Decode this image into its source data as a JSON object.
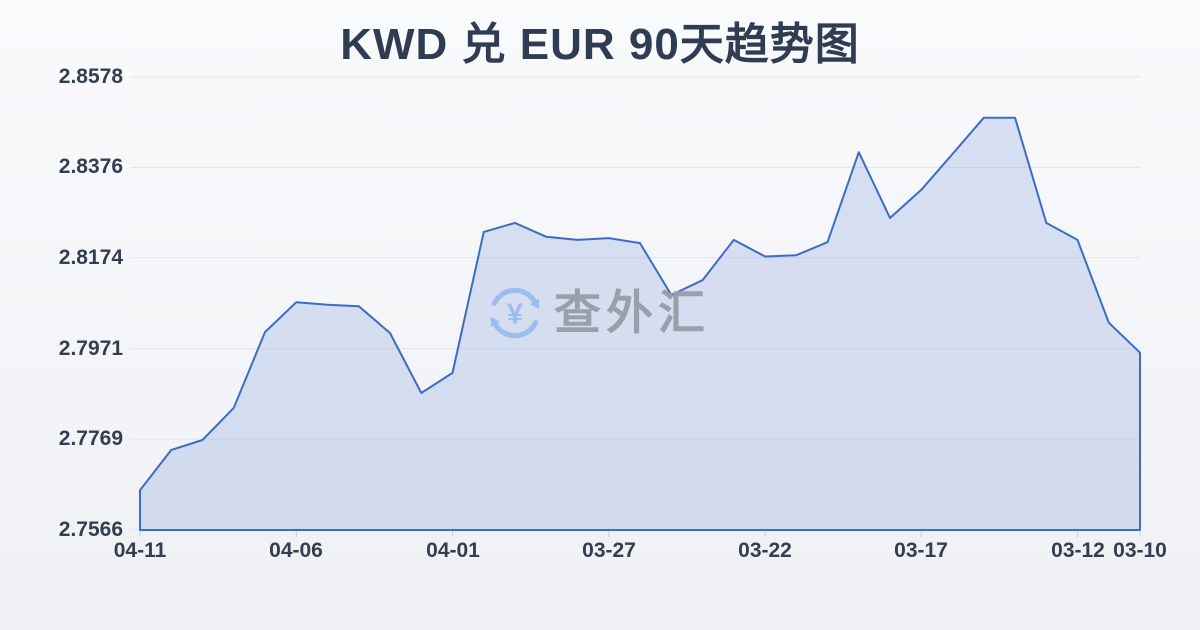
{
  "page": {
    "title": "KWD 兑 EUR 90天趋势图",
    "watermark": {
      "text": "查外汇",
      "currency_symbol": "¥"
    }
  },
  "colors": {
    "title": "#303c52",
    "axis_label": "#353e4f",
    "gridline": "#e2e5ea",
    "tick_mark": "#ccd0d8",
    "line": "#3d6cc3",
    "area_fill": "rgba(90,125,210,0.2)",
    "watermark_icon": "#9dbdf0",
    "watermark_text": "#9aa0a9"
  },
  "chart_data": {
    "type": "area",
    "title": "KWD 兑 EUR 90天趋势图",
    "xlabel": "",
    "ylabel": "",
    "grid": true,
    "legend": false,
    "ylim": [
      2.7566,
      2.8578
    ],
    "y_ticks": [
      2.7566,
      2.7769,
      2.7971,
      2.8174,
      2.8376,
      2.8578
    ],
    "x_tick_labels": [
      "04-11",
      "04-06",
      "04-01",
      "03-27",
      "03-22",
      "03-17",
      "03-12",
      "03-10"
    ],
    "x_tick_indices": [
      0,
      5,
      10,
      15,
      20,
      25,
      30,
      32
    ],
    "x": [
      "04-11",
      "04-10",
      "04-09",
      "04-08",
      "04-07",
      "04-06",
      "04-05",
      "04-04",
      "04-03",
      "04-02",
      "04-01",
      "03-31",
      "03-30",
      "03-29",
      "03-28",
      "03-27",
      "03-26",
      "03-25",
      "03-24",
      "03-23",
      "03-22",
      "03-21",
      "03-20",
      "03-19",
      "03-18",
      "03-17",
      "03-16",
      "03-15",
      "03-14",
      "03-13",
      "03-12",
      "03-11",
      "03-10"
    ],
    "values": [
      2.7655,
      2.7745,
      2.7767,
      2.7839,
      2.8008,
      2.8075,
      2.8069,
      2.8066,
      2.8006,
      2.7872,
      2.7917,
      2.8232,
      2.8252,
      2.8221,
      2.8214,
      2.8218,
      2.8207,
      2.8091,
      2.8124,
      2.8214,
      2.8177,
      2.818,
      2.8209,
      2.841,
      2.8263,
      2.8326,
      2.8406,
      2.8487,
      2.8487,
      2.8252,
      2.8214,
      2.8029,
      2.7962
    ]
  }
}
